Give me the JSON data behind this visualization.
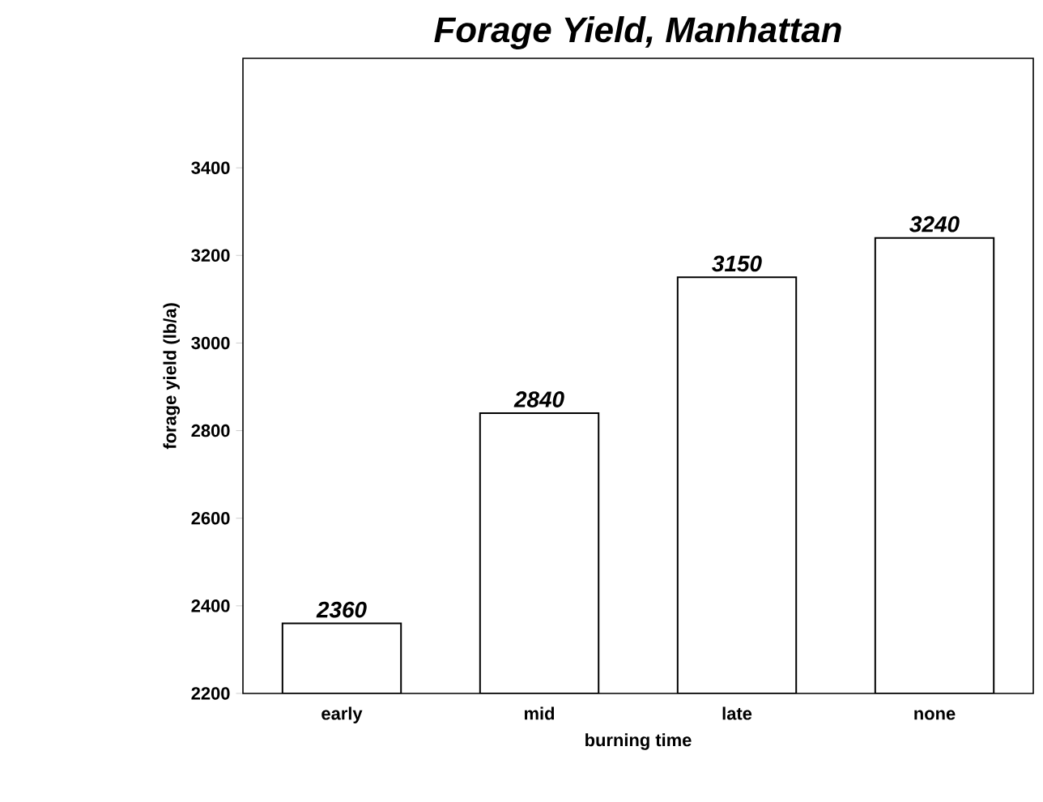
{
  "chart_data": {
    "type": "bar",
    "title": "Forage Yield, Manhattan",
    "xlabel": "burning time",
    "ylabel": "forage yield (lb/a)",
    "categories": [
      "early",
      "mid",
      "late",
      "none"
    ],
    "values": [
      2360,
      2840,
      3150,
      3240
    ],
    "color": "#ffffff",
    "ylim": [
      2200,
      3650
    ],
    "yticks": [
      2200,
      2400,
      2600,
      2800,
      3000,
      3200,
      3400
    ],
    "data_labels": true
  }
}
